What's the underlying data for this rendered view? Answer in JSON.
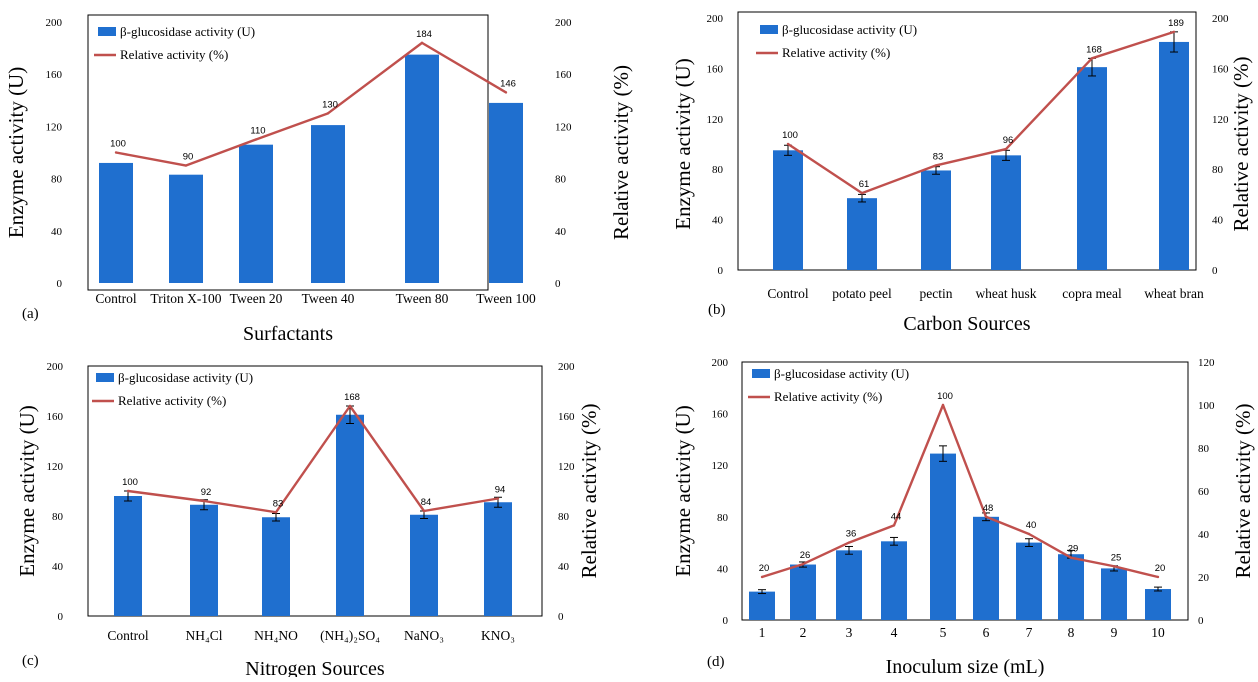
{
  "colors": {
    "bar": "#1f6fcf",
    "line": "#c0504d",
    "axis": "#000000"
  },
  "chart_data": [
    {
      "type": "bar",
      "panel_label": "(a)",
      "xlabel": "Surfactants",
      "ylabel": "Enzyme activity (U)",
      "y2label": "Relative activity (%)",
      "ylim": [
        0,
        200
      ],
      "y2lim": [
        0,
        200
      ],
      "yticks": [
        "0",
        "40",
        "80",
        "120",
        "160",
        "200"
      ],
      "y2ticks": [
        "0",
        "40",
        "80",
        "120",
        "160",
        "200"
      ],
      "categories": [
        "Control",
        "Triton X-100",
        "Tween 20",
        "Tween 40",
        "Tween 80",
        "Tween 100"
      ],
      "legend": [
        "β-glucosidase activity (U)",
        "Relative activity (%)"
      ],
      "series": [
        {
          "name": "β-glucosidase activity (U)",
          "type": "bar",
          "values": [
            92,
            83,
            106,
            121,
            175,
            138
          ]
        },
        {
          "name": "Relative activity (%)",
          "type": "line",
          "values": [
            100,
            90,
            110,
            130,
            184,
            146
          ],
          "labels": [
            "100",
            "90",
            "110",
            "130",
            "184",
            "146"
          ]
        }
      ]
    },
    {
      "type": "bar",
      "panel_label": "(b)",
      "xlabel": "Carbon Sources",
      "ylabel": "Enzyme activity (U)",
      "y2label": "Relative activity (%)",
      "ylim": [
        0,
        200
      ],
      "y2lim": [
        0,
        200
      ],
      "yticks": [
        "0",
        "40",
        "80",
        "120",
        "160",
        "200"
      ],
      "y2ticks": [
        "0",
        "40",
        "80",
        "120",
        "160",
        "200"
      ],
      "categories": [
        "Control",
        "potato peel",
        "pectin",
        "wheat husk",
        "copra meal",
        "wheat bran"
      ],
      "legend": [
        "β-glucosidase activity (U)",
        "Relative activity (%)"
      ],
      "series": [
        {
          "name": "β-glucosidase activity (U)",
          "type": "bar",
          "values": [
            95,
            57,
            79,
            91,
            161,
            181
          ],
          "errors": [
            4,
            3,
            3,
            4,
            7,
            8
          ]
        },
        {
          "name": "Relative activity (%)",
          "type": "line",
          "values": [
            100,
            61,
            83,
            96,
            168,
            189
          ],
          "labels": [
            "100",
            "61",
            "83",
            "96",
            "168",
            "189"
          ]
        }
      ]
    },
    {
      "type": "bar",
      "panel_label": "(c)",
      "xlabel": "Nitrogen Sources",
      "ylabel": "Enzyme activity (U)",
      "y2label": "Relative activity (%)",
      "ylim": [
        0,
        200
      ],
      "y2lim": [
        0,
        200
      ],
      "yticks": [
        "0",
        "40",
        "80",
        "120",
        "160",
        "200"
      ],
      "y2ticks": [
        "0",
        "40",
        "80",
        "120",
        "160",
        "200"
      ],
      "categories": [
        "Control",
        "NH₄Cl",
        "NH₄NO",
        "(NH₄)₂SO₄",
        "NaNO₃",
        "KNO₃"
      ],
      "legend": [
        "β-glucosidase activity (U)",
        "Relative activity (%)"
      ],
      "series": [
        {
          "name": "β-glucosidase activity (U)",
          "type": "bar",
          "values": [
            96,
            89,
            79,
            161,
            81,
            91
          ],
          "errors": [
            4,
            4,
            3,
            7,
            3,
            4
          ]
        },
        {
          "name": "Relative activity (%)",
          "type": "line",
          "values": [
            100,
            92,
            83,
            168,
            84,
            94
          ],
          "labels": [
            "100",
            "92",
            "83",
            "168",
            "84",
            "94"
          ]
        }
      ]
    },
    {
      "type": "bar",
      "panel_label": "(d)",
      "xlabel": "Inoculum size  (mL)",
      "ylabel": "Enzyme activity (U)",
      "y2label": "Relative activity (%)",
      "ylim": [
        0,
        200
      ],
      "y2lim": [
        0,
        120
      ],
      "yticks": [
        "0",
        "40",
        "80",
        "120",
        "160",
        "200"
      ],
      "y2ticks": [
        "0",
        "20",
        "40",
        "60",
        "80",
        "100",
        "120"
      ],
      "categories": [
        "1",
        "2",
        "3",
        "4",
        "5",
        "6",
        "7",
        "8",
        "9",
        "10"
      ],
      "legend": [
        "β-glucosidase activity (U)",
        "Relative activity (%)"
      ],
      "series": [
        {
          "name": "β-glucosidase activity (U)",
          "type": "bar",
          "values": [
            22,
            43,
            54,
            61,
            129,
            80,
            60,
            51,
            40,
            24
          ],
          "errors": [
            1.5,
            2,
            3,
            3,
            6,
            3,
            3,
            3,
            2,
            1.5
          ]
        },
        {
          "name": "Relative activity (%)",
          "type": "line",
          "values": [
            20,
            26,
            36,
            44,
            100,
            48,
            40,
            29,
            25,
            20
          ],
          "labels": [
            "20",
            "26",
            "36",
            "44",
            "100",
            "48",
            "40",
            "29",
            "25",
            "20"
          ]
        }
      ]
    }
  ]
}
